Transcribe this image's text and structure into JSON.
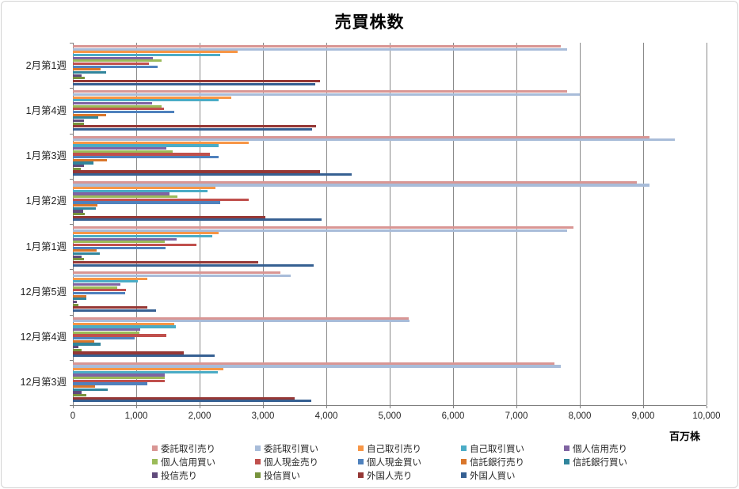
{
  "title": "売買株数",
  "chart_data": {
    "type": "bar",
    "orientation": "horizontal",
    "title": "売買株数",
    "xlabel": "百万株",
    "xlim": [
      0,
      10000
    ],
    "xtick_labels": [
      "0",
      "1,000",
      "2,000",
      "3,000",
      "4,000",
      "5,000",
      "6,000",
      "7,000",
      "8,000",
      "9,000",
      "10,000"
    ],
    "grid": "vertical",
    "legend_position": "bottom",
    "categories": [
      "2月第1週",
      "1月第4週",
      "1月第3週",
      "1月第2週",
      "1月第1週",
      "12月第5週",
      "12月第4週",
      "12月第3週"
    ],
    "series": [
      {
        "name": "委託取引売り",
        "color": "#D99694",
        "values": [
          7700,
          7800,
          9100,
          8900,
          7900,
          3270,
          5300,
          7600
        ]
      },
      {
        "name": "委託取引買い",
        "color": "#A8BCD9",
        "values": [
          7800,
          8000,
          9500,
          9100,
          7800,
          3440,
          5310,
          7700
        ]
      },
      {
        "name": "自己取引売り",
        "color": "#F79646",
        "values": [
          2600,
          2500,
          2770,
          2250,
          2300,
          1180,
          1600,
          2380
        ]
      },
      {
        "name": "自己取引買い",
        "color": "#4BACC6",
        "values": [
          2330,
          2300,
          2300,
          2130,
          2200,
          1030,
          1620,
          2290
        ]
      },
      {
        "name": "個人信用売り",
        "color": "#8064A2",
        "values": [
          1260,
          1250,
          1480,
          1520,
          1640,
          750,
          1060,
          1450
        ]
      },
      {
        "name": "個人信用買い",
        "color": "#9BBB59",
        "values": [
          1400,
          1400,
          1580,
          1650,
          1450,
          700,
          1050,
          1450
        ]
      },
      {
        "name": "個人現金売り",
        "color": "#C0504D",
        "values": [
          1200,
          1440,
          2160,
          2770,
          1950,
          840,
          1480,
          1450
        ]
      },
      {
        "name": "個人現金買い",
        "color": "#4F81BD",
        "values": [
          1340,
          1600,
          2300,
          2330,
          1460,
          820,
          980,
          1170
        ]
      },
      {
        "name": "信託銀行売り",
        "color": "#D9762B",
        "values": [
          440,
          530,
          540,
          390,
          380,
          210,
          340,
          350
        ]
      },
      {
        "name": "信託銀行買い",
        "color": "#31859C",
        "values": [
          520,
          400,
          320,
          360,
          420,
          210,
          440,
          550
        ]
      },
      {
        "name": "投信売り",
        "color": "#604A7B",
        "values": [
          140,
          170,
          170,
          160,
          140,
          60,
          90,
          140
        ]
      },
      {
        "name": "投信買い",
        "color": "#77933C",
        "values": [
          190,
          170,
          130,
          190,
          180,
          90,
          140,
          210
        ]
      },
      {
        "name": "外国人売り",
        "color": "#953735",
        "values": [
          3900,
          3840,
          3900,
          3040,
          2930,
          1180,
          1750,
          3500
        ]
      },
      {
        "name": "外国人買い",
        "color": "#366092",
        "values": [
          3830,
          3770,
          4400,
          3920,
          3800,
          1310,
          2240,
          3760
        ]
      }
    ]
  }
}
